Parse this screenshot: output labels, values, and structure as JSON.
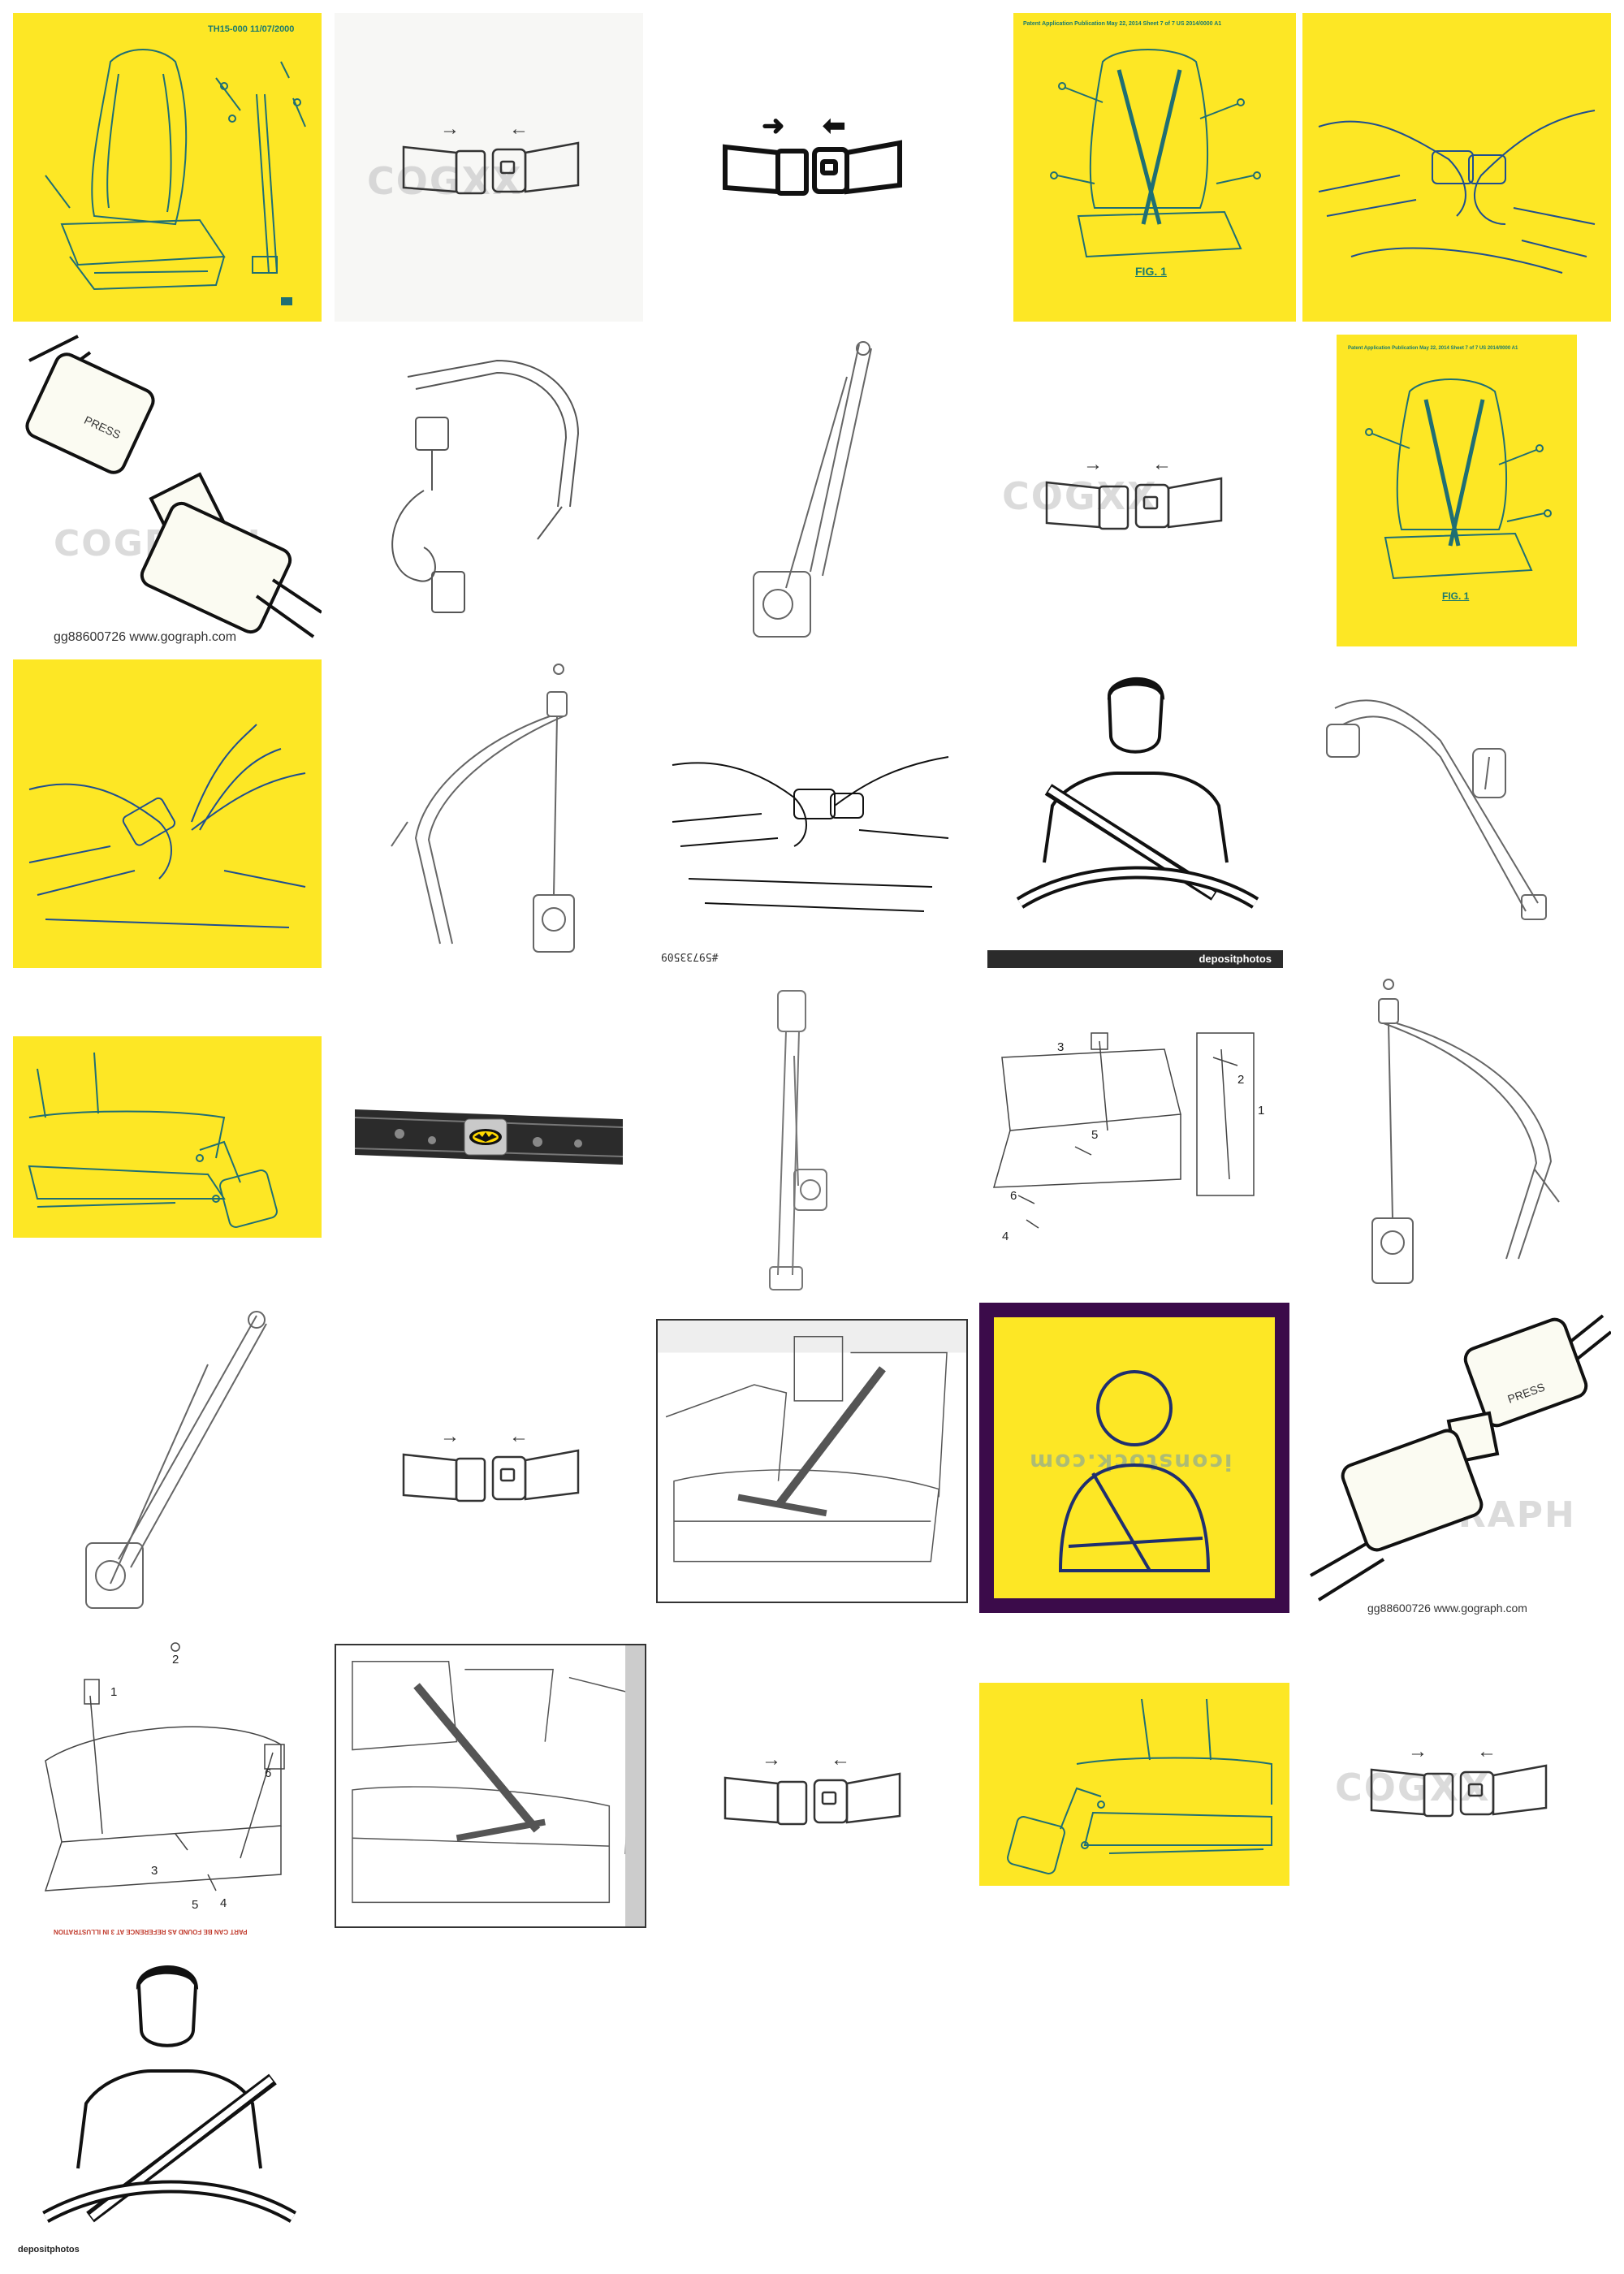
{
  "gallery": {
    "tiles": [
      {
        "id": "t1",
        "caption_top": "TH15-000 11/07/2000"
      },
      {
        "id": "t2",
        "watermark": "COGXX"
      },
      {
        "id": "t3"
      },
      {
        "id": "t4",
        "patent_header": "Patent Application Publication    May 22, 2014  Sheet 7 of 7    US 2014/0000 A1",
        "fig_label": "FIG. 1"
      },
      {
        "id": "t5"
      },
      {
        "id": "t6",
        "watermark": "COGRAPH",
        "caption": "gg88600726  www.gograph.com",
        "button_text": "PRESS"
      },
      {
        "id": "t7"
      },
      {
        "id": "t8"
      },
      {
        "id": "t9",
        "watermark": "COGXX"
      },
      {
        "id": "t10",
        "patent_header": "Patent Application Publication    May 22, 2014  Sheet 7 of 7    US 2014/0000 A1",
        "fig_label": "FIG. 1"
      },
      {
        "id": "t11"
      },
      {
        "id": "t12"
      },
      {
        "id": "t13",
        "caption": "#59733509"
      },
      {
        "id": "t14",
        "bar_logo": "depositphotos"
      },
      {
        "id": "t15"
      },
      {
        "id": "t16"
      },
      {
        "id": "t17"
      },
      {
        "id": "t18"
      },
      {
        "id": "t19",
        "labels": [
          "1",
          "2",
          "3",
          "4",
          "5",
          "6"
        ]
      },
      {
        "id": "t20"
      },
      {
        "id": "t21"
      },
      {
        "id": "t22"
      },
      {
        "id": "t23"
      },
      {
        "id": "t24",
        "watermark": "iconstock.com"
      },
      {
        "id": "t25",
        "watermark": "COGRAPH",
        "caption": "gg88600726  www.gograph.com",
        "button_text": "PRESS"
      },
      {
        "id": "t26",
        "labels": [
          "1",
          "2",
          "3",
          "4",
          "5",
          "6"
        ],
        "red_caption": "PART CAN BE FOUND AS REFERENCE AT 3 IN ILLUSTRATION"
      },
      {
        "id": "t27"
      },
      {
        "id": "t28"
      },
      {
        "id": "t29"
      },
      {
        "id": "t30",
        "watermark": "COGXX"
      },
      {
        "id": "t31",
        "foot_logo": "depositphotos"
      }
    ]
  },
  "colors": {
    "yellow": "#fde725",
    "line_teal": "#1f6f73",
    "dark_purple": "#3b0b4a",
    "ink": "#222222"
  }
}
